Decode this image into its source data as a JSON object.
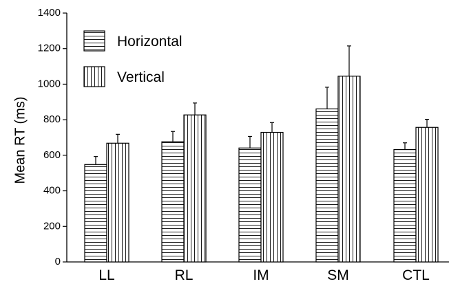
{
  "chart_data": {
    "type": "bar",
    "categories": [
      "LL",
      "RL",
      "IM",
      "SM",
      "CTL"
    ],
    "series": [
      {
        "name": "Horizontal",
        "pattern": "horizontal-lines",
        "values": [
          548,
          676,
          641,
          861,
          632
        ],
        "errors": [
          45,
          58,
          65,
          122,
          38
        ]
      },
      {
        "name": "Vertical",
        "pattern": "vertical-lines",
        "values": [
          668,
          827,
          729,
          1045,
          757
        ],
        "errors": [
          50,
          67,
          55,
          170,
          45
        ]
      }
    ],
    "ylabel": "Mean RT (ms)",
    "xlabel": "",
    "title": "",
    "ylim": [
      0,
      1400
    ],
    "yticks": [
      0,
      200,
      400,
      600,
      800,
      1000,
      1200,
      1400
    ],
    "grid": false,
    "legend": "top-left",
    "colors": {
      "line": "#000000",
      "fill": "#ffffff"
    }
  }
}
